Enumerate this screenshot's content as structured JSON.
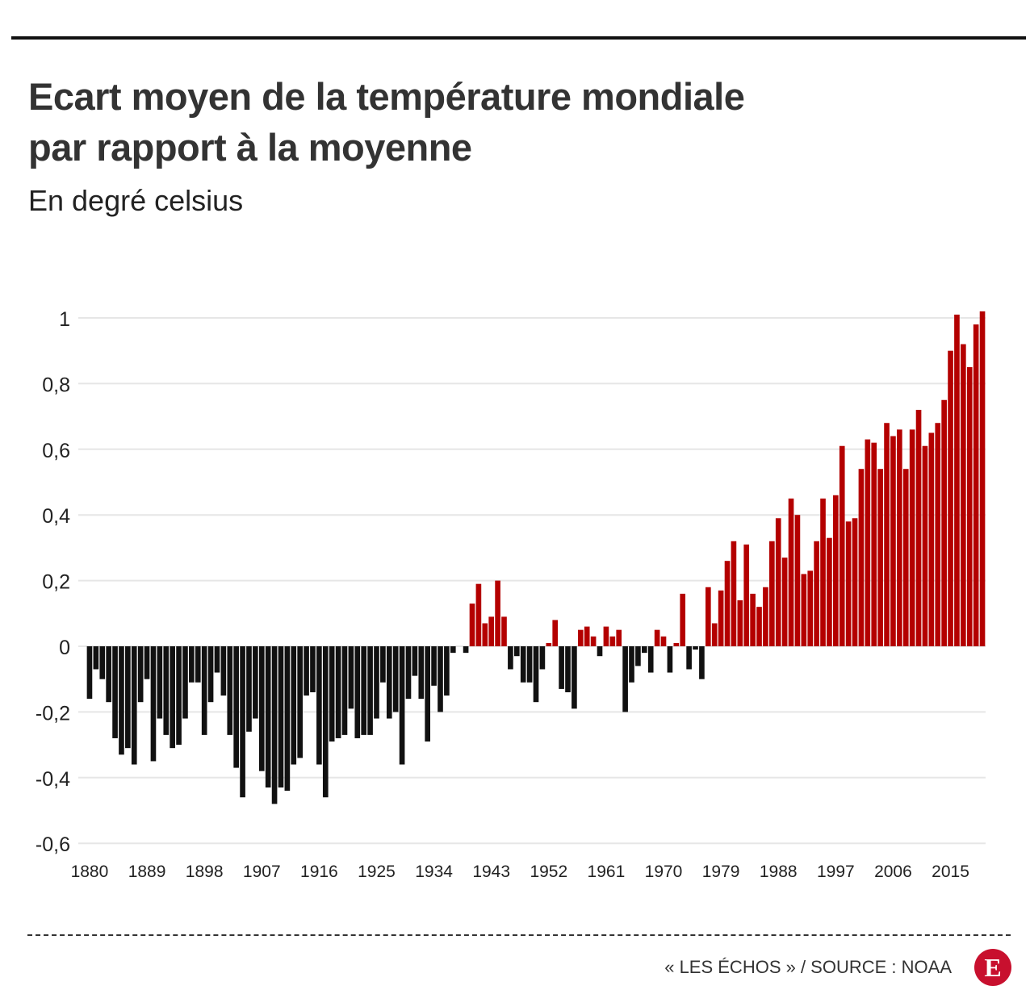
{
  "header": {
    "title_line1": "Ecart moyen de la température mondiale",
    "title_line2": "par rapport à la moyenne",
    "subtitle": "En degré celsius"
  },
  "footer": {
    "source": "« LES ÉCHOS » / SOURCE : NOAA",
    "logo_letter": "E"
  },
  "colors": {
    "positive": "#b40000",
    "negative": "#111111",
    "grid": "#e6e6e6"
  },
  "chart_data": {
    "type": "bar",
    "title": "Ecart moyen de la température mondiale par rapport à la moyenne",
    "subtitle": "En degré celsius",
    "xlabel": "",
    "ylabel": "",
    "ylim": [
      -0.6,
      1.02
    ],
    "grid": true,
    "yticks": [
      1,
      0.8,
      0.6,
      0.4,
      0.2,
      0,
      -0.2,
      -0.4,
      -0.6
    ],
    "ytick_labels": [
      "1",
      "0,8",
      "0,6",
      "0,4",
      "0,2",
      "0",
      "-0,2",
      "-0,4",
      "-0,6"
    ],
    "xtick_labels": [
      "1880",
      "1889",
      "1898",
      "1907",
      "1916",
      "1925",
      "1934",
      "1943",
      "1952",
      "1961",
      "1970",
      "1979",
      "1988",
      "1997",
      "2006",
      "2015"
    ],
    "start_year": 1880,
    "values": [
      -0.16,
      -0.07,
      -0.1,
      -0.17,
      -0.28,
      -0.33,
      -0.31,
      -0.36,
      -0.17,
      -0.1,
      -0.35,
      -0.22,
      -0.27,
      -0.31,
      -0.3,
      -0.22,
      -0.11,
      -0.11,
      -0.27,
      -0.17,
      -0.08,
      -0.15,
      -0.27,
      -0.37,
      -0.46,
      -0.26,
      -0.22,
      -0.38,
      -0.43,
      -0.48,
      -0.43,
      -0.44,
      -0.36,
      -0.34,
      -0.15,
      -0.14,
      -0.36,
      -0.46,
      -0.29,
      -0.28,
      -0.27,
      -0.19,
      -0.28,
      -0.27,
      -0.27,
      -0.22,
      -0.11,
      -0.22,
      -0.2,
      -0.36,
      -0.16,
      -0.09,
      -0.16,
      -0.29,
      -0.12,
      -0.2,
      -0.15,
      -0.02,
      0.0,
      -0.02,
      0.13,
      0.19,
      0.07,
      0.09,
      0.2,
      0.09,
      -0.07,
      -0.03,
      -0.11,
      -0.11,
      -0.17,
      -0.07,
      0.01,
      0.08,
      -0.13,
      -0.14,
      -0.19,
      0.05,
      0.06,
      0.03,
      -0.03,
      0.06,
      0.03,
      0.05,
      -0.2,
      -0.11,
      -0.06,
      -0.02,
      -0.08,
      0.05,
      0.03,
      -0.08,
      0.01,
      0.16,
      -0.07,
      -0.01,
      -0.1,
      0.18,
      0.07,
      0.17,
      0.26,
      0.32,
      0.14,
      0.31,
      0.16,
      0.12,
      0.18,
      0.32,
      0.39,
      0.27,
      0.45,
      0.4,
      0.22,
      0.23,
      0.32,
      0.45,
      0.33,
      0.46,
      0.61,
      0.38,
      0.39,
      0.54,
      0.63,
      0.62,
      0.54,
      0.68,
      0.64,
      0.66,
      0.54,
      0.66,
      0.72,
      0.61,
      0.65,
      0.68,
      0.75,
      0.9,
      1.01,
      0.92,
      0.85,
      0.98,
      1.02
    ]
  }
}
